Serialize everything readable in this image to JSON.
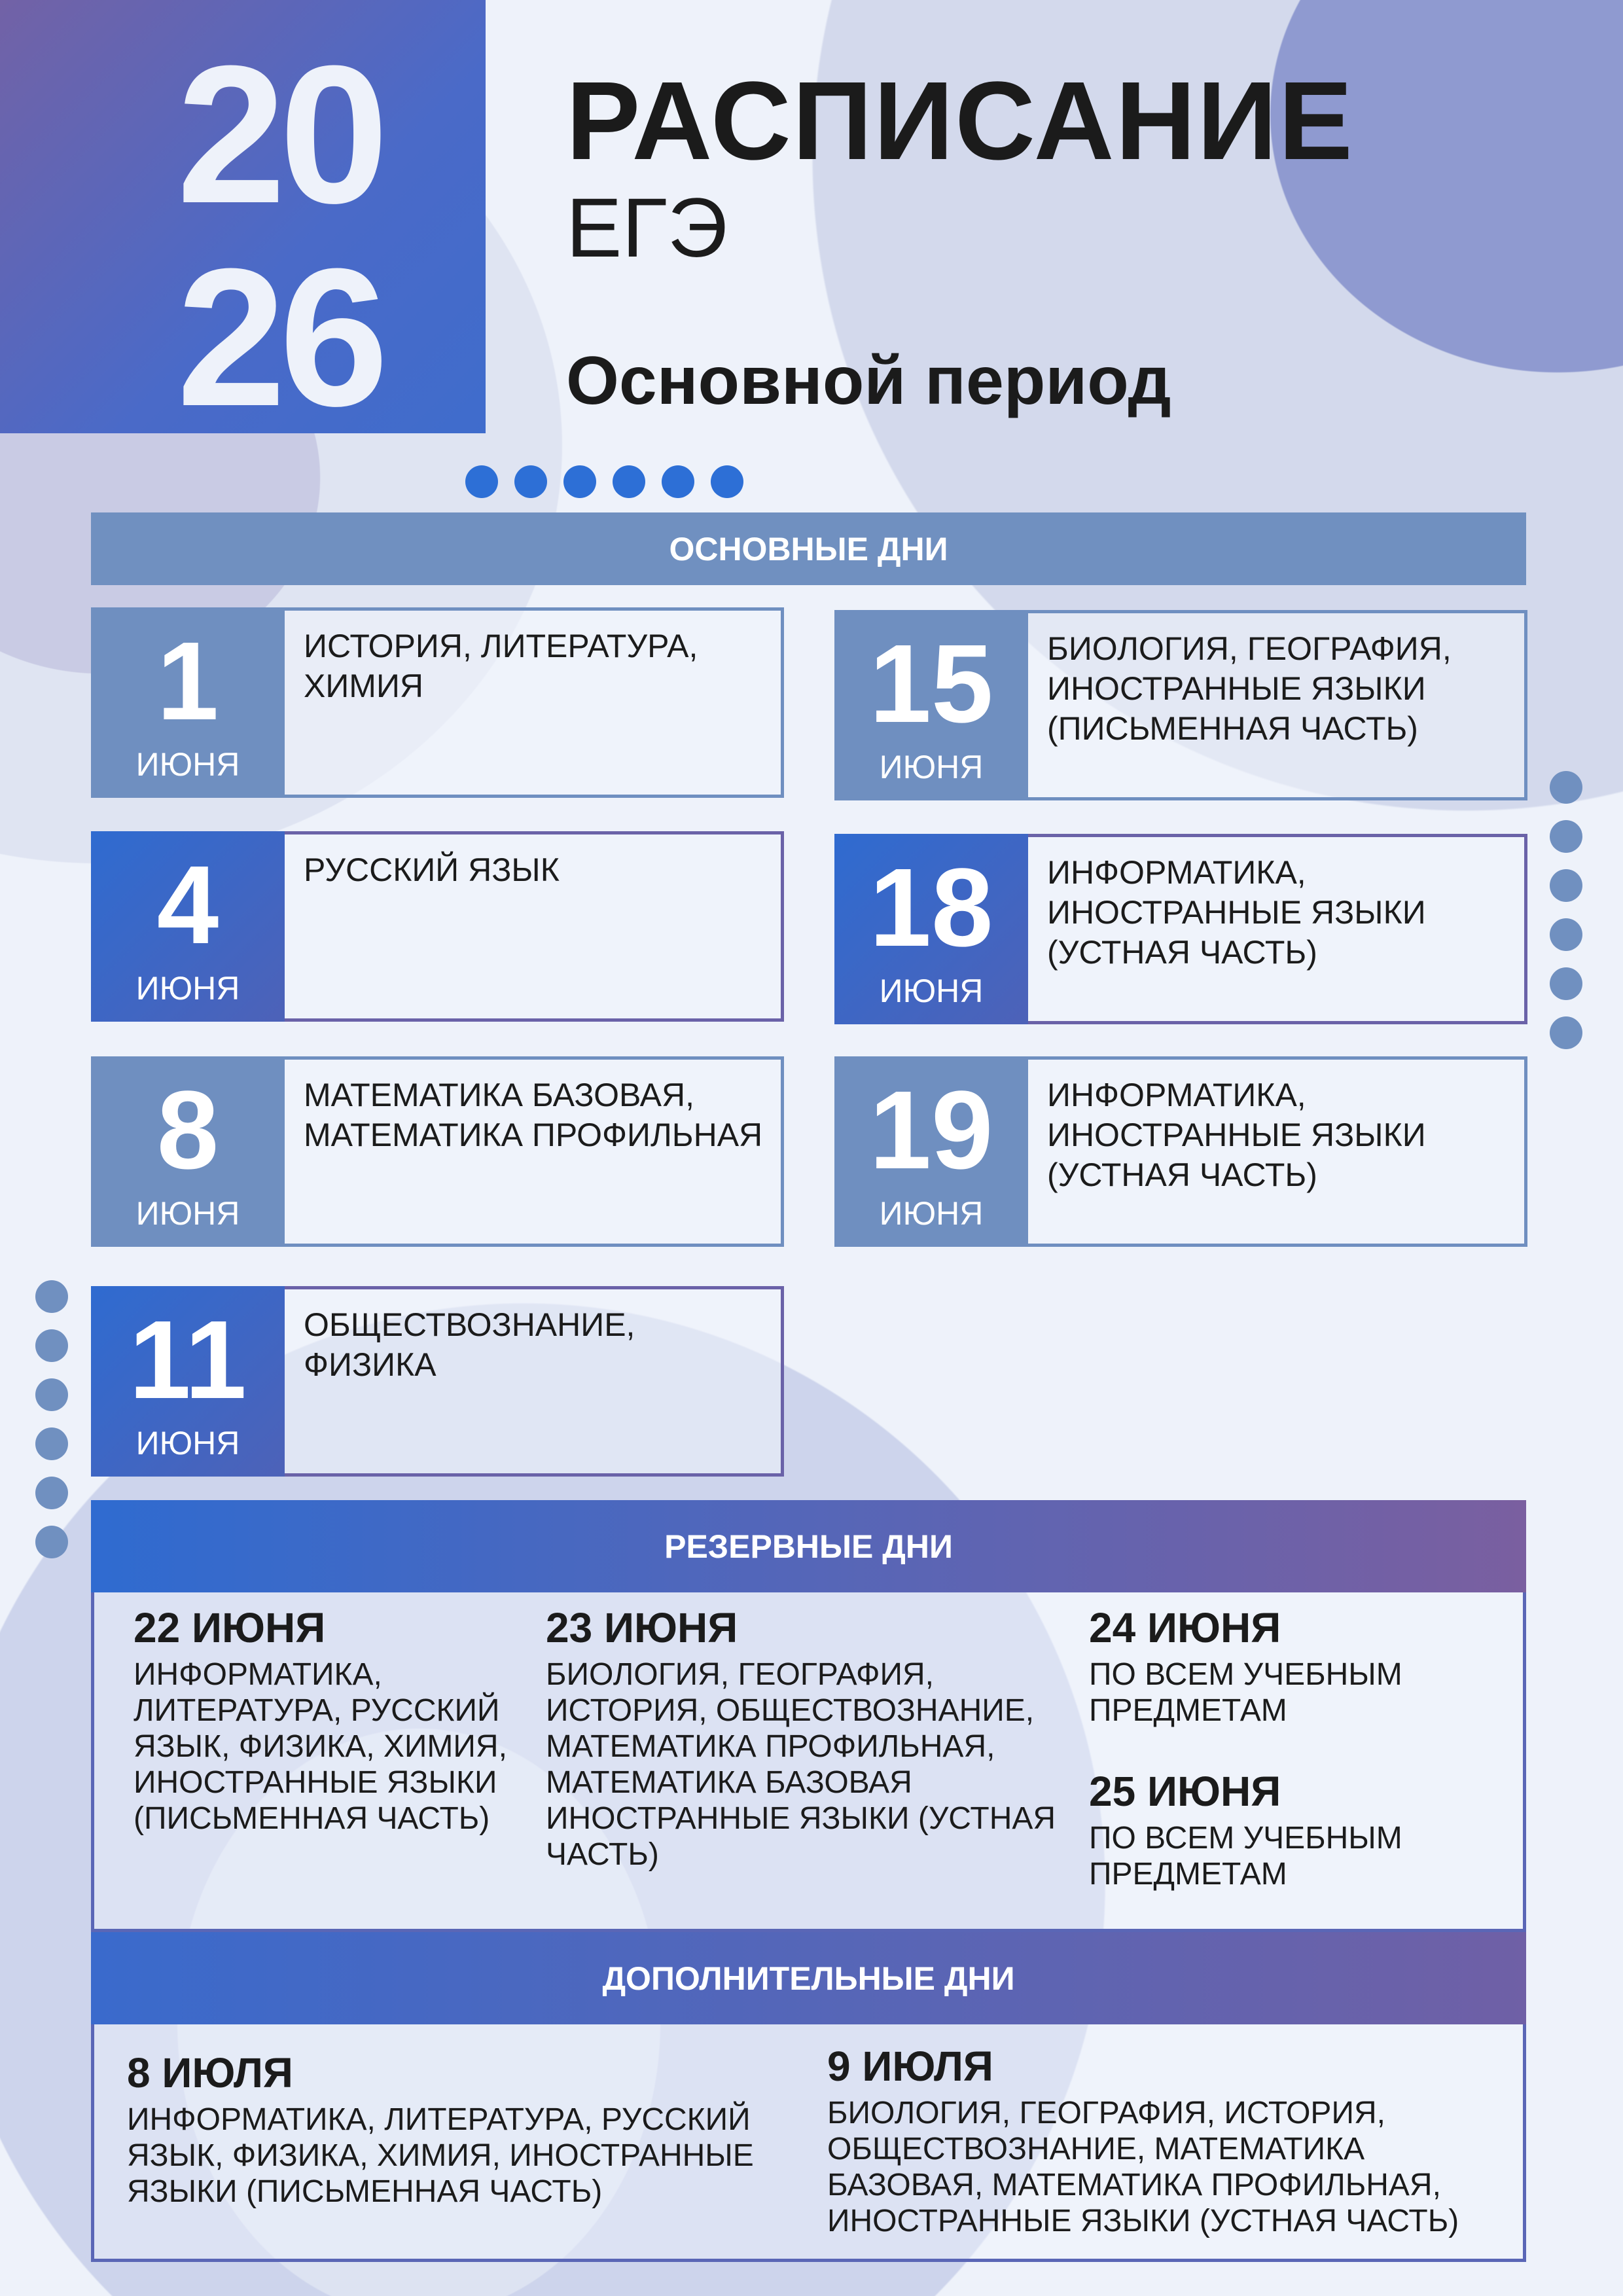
{
  "colors": {
    "background": "#eef2fa",
    "accent_blue": "#2f6bd0",
    "muted_blue": "#6f8fc0",
    "purple": "#7a5fa0",
    "dots": "#2d6fd6"
  },
  "header": {
    "year_top": "20",
    "year_bottom": "26",
    "title": "РАСПИСАНИЕ",
    "subtitle": "ЕГЭ",
    "period": "Основной период"
  },
  "main_days": {
    "heading": "ОСНОВНЫЕ ДНИ",
    "items": [
      {
        "day": "1",
        "month": "ИЮНЯ",
        "subjects": "ИСТОРИЯ, ЛИТЕРАТУРА, ХИМИЯ",
        "style": "muted"
      },
      {
        "day": "15",
        "month": "ИЮНЯ",
        "subjects": "БИОЛОГИЯ, ГЕОГРАФИЯ, ИНОСТРАННЫЕ ЯЗЫКИ (ПИСЬМЕННАЯ ЧАСТЬ)",
        "style": "muted"
      },
      {
        "day": "4",
        "month": "ИЮНЯ",
        "subjects": "РУССКИЙ ЯЗЫК",
        "style": "bright"
      },
      {
        "day": "18",
        "month": "ИЮНЯ",
        "subjects": "ИНФОРМАТИКА, ИНОСТРАННЫЕ ЯЗЫКИ (УСТНАЯ ЧАСТЬ)",
        "style": "bright"
      },
      {
        "day": "8",
        "month": "ИЮНЯ",
        "subjects": "МАТЕМАТИКА БАЗОВАЯ, МАТЕМАТИКА ПРОФИЛЬНАЯ",
        "style": "muted"
      },
      {
        "day": "19",
        "month": "ИЮНЯ",
        "subjects": "ИНФОРМАТИКА, ИНОСТРАННЫЕ ЯЗЫКИ (УСТНАЯ ЧАСТЬ)",
        "style": "muted"
      },
      {
        "day": "11",
        "month": "ИЮНЯ",
        "subjects": "ОБЩЕСТВОЗНАНИЕ, ФИЗИКА",
        "style": "bright"
      }
    ]
  },
  "reserve_days": {
    "heading": "РЕЗЕРВНЫЕ ДНИ",
    "items": [
      {
        "date": "22 ИЮНЯ",
        "subjects": "ИНФОРМАТИКА, ЛИТЕРАТУРА, РУССКИЙ ЯЗЫК, ФИЗИКА, ХИМИЯ, ИНОСТРАННЫЕ ЯЗЫКИ (ПИСЬМЕННАЯ ЧАСТЬ)"
      },
      {
        "date": "23 ИЮНЯ",
        "subjects": "БИОЛОГИЯ, ГЕОГРАФИЯ, ИСТОРИЯ, ОБЩЕСТВОЗНАНИЕ, МАТЕМАТИКА ПРОФИЛЬНАЯ, МАТЕМАТИКА БАЗОВАЯ ИНОСТРАННЫЕ ЯЗЫКИ (УСТНАЯ ЧАСТЬ)"
      },
      {
        "date": "24 ИЮНЯ",
        "subjects": "ПО ВСЕМ УЧЕБНЫМ ПРЕДМЕТАМ"
      },
      {
        "date": "25 ИЮНЯ",
        "subjects": "ПО ВСЕМ УЧЕБНЫМ ПРЕДМЕТАМ"
      }
    ]
  },
  "additional_days": {
    "heading": "ДОПОЛНИТЕЛЬНЫЕ ДНИ",
    "items": [
      {
        "date": "8 ИЮЛЯ",
        "subjects": "ИНФОРМАТИКА, ЛИТЕРАТУРА, РУССКИЙ ЯЗЫК, ФИЗИКА, ХИМИЯ, ИНОСТРАННЫЕ ЯЗЫКИ (ПИСЬМЕННАЯ ЧАСТЬ)"
      },
      {
        "date": "9 ИЮЛЯ",
        "subjects": "БИОЛОГИЯ, ГЕОГРАФИЯ, ИСТОРИЯ, ОБЩЕСТВОЗНАНИЕ, МАТЕМАТИКА БАЗОВАЯ, МАТЕМАТИКА ПРОФИЛЬНАЯ, ИНОСТРАННЫЕ ЯЗЫКИ (УСТНАЯ ЧАСТЬ)"
      }
    ]
  }
}
